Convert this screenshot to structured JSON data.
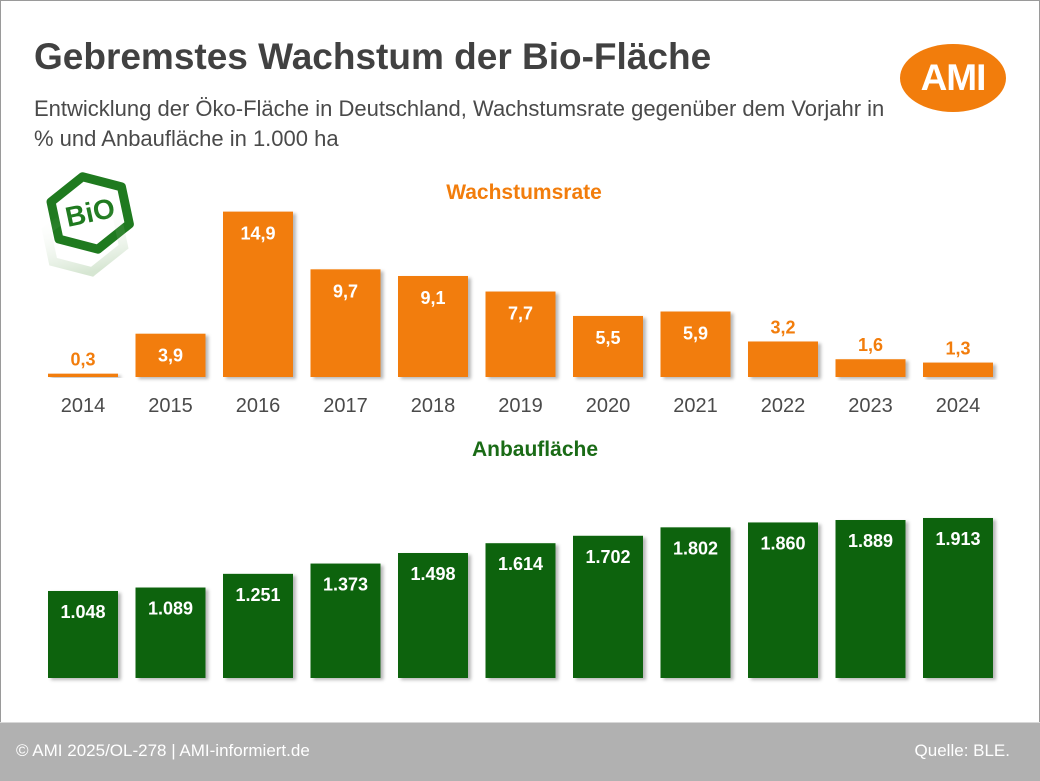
{
  "header": {
    "title": "Gebremstes Wachstum der Bio-Fläche",
    "subtitle": "Entwicklung der Öko-Fläche in Deutschland, Wachstumsrate gegenüber dem Vorjahr in % und Anbaufläche in 1.000 ha",
    "logo_text": "AMI",
    "badge_text": "BiO"
  },
  "colors": {
    "accent_orange": "#f27d0c",
    "accent_green": "#0b640b",
    "title_text": "#414141",
    "axis_label": "#4a4a4a",
    "footer_bg": "#b1b1b1"
  },
  "footer": {
    "copyright": "© AMI 2025/OL-278 | AMI-informiert.de",
    "source": "Quelle: BLE."
  },
  "chart_data": [
    {
      "type": "bar",
      "title": "Wachstumsrate",
      "xlabel": "",
      "ylabel": "Wachstumsrate gegenüber dem Vorjahr in %",
      "categories": [
        "2014",
        "2015",
        "2016",
        "2017",
        "2018",
        "2019",
        "2020",
        "2021",
        "2022",
        "2023",
        "2024"
      ],
      "values": [
        0.3,
        3.9,
        14.9,
        9.7,
        9.1,
        7.7,
        5.5,
        5.9,
        3.2,
        1.6,
        1.3
      ],
      "labels": [
        "0,3",
        "3,9",
        "14,9",
        "9,7",
        "9,1",
        "7,7",
        "5,5",
        "5,9",
        "3,2",
        "1,6",
        "1,3"
      ],
      "ylim": [
        0,
        15
      ],
      "grid": false,
      "legend": "none",
      "color": "#f27d0c"
    },
    {
      "type": "bar",
      "title": "Anbaufläche",
      "xlabel": "",
      "ylabel": "Anbaufläche in 1.000 ha",
      "categories": [
        "2014",
        "2015",
        "2016",
        "2017",
        "2018",
        "2019",
        "2020",
        "2021",
        "2022",
        "2023",
        "2024"
      ],
      "values": [
        1048,
        1089,
        1251,
        1373,
        1498,
        1614,
        1702,
        1802,
        1860,
        1889,
        1913
      ],
      "labels": [
        "1.048",
        "1.089",
        "1.251",
        "1.373",
        "1.498",
        "1.614",
        "1.702",
        "1.802",
        "1.860",
        "1.889",
        "1.913"
      ],
      "ylim": [
        0,
        1913
      ],
      "grid": false,
      "legend": "none",
      "color": "#0b640b"
    }
  ]
}
